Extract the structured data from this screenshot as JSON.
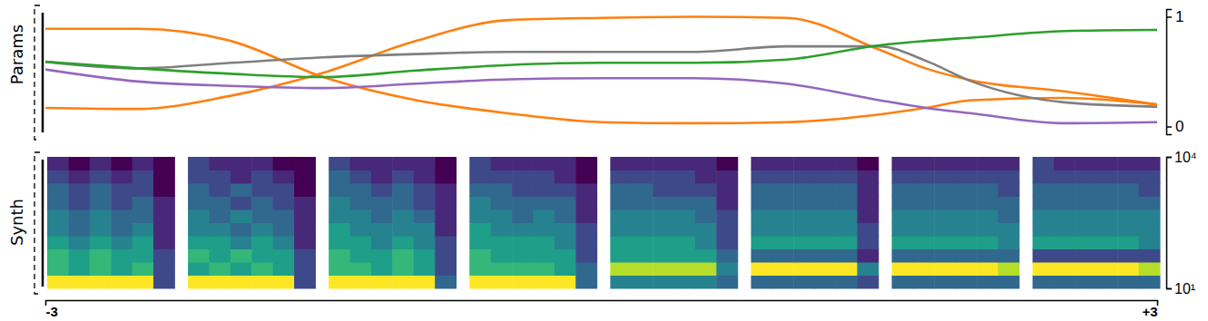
{
  "chart_data": [
    {
      "type": "line",
      "ylabel": "Params",
      "xlim": [
        -3,
        3
      ],
      "xticks": [
        {
          "value": -3,
          "label": "-3"
        },
        {
          "value": 3,
          "label": "+3"
        }
      ],
      "ylim": [
        -0.07,
        1.07
      ],
      "yticks": [
        0,
        1
      ],
      "x": [
        -3,
        -2.5,
        -2,
        -1.5,
        -1,
        -0.5,
        0,
        0.5,
        1,
        1.5,
        1.75,
        2,
        2.5,
        3
      ],
      "series": [
        {
          "color": "#ff7f0e",
          "values": [
            0.89,
            0.89,
            0.78,
            0.45,
            0.24,
            0.12,
            0.04,
            0.03,
            0.04,
            0.11,
            0.17,
            0.24,
            0.26,
            0.2
          ]
        },
        {
          "color": "#ff7f0e",
          "values": [
            0.17,
            0.16,
            0.28,
            0.49,
            0.78,
            0.97,
            0.99,
            1.0,
            0.99,
            0.7,
            0.53,
            0.42,
            0.32,
            0.2
          ]
        },
        {
          "color": "#7f7f7f",
          "values": [
            0.59,
            0.53,
            0.58,
            0.63,
            0.66,
            0.68,
            0.68,
            0.68,
            0.73,
            0.73,
            0.6,
            0.41,
            0.22,
            0.18
          ]
        },
        {
          "color": "#2ca02c",
          "values": [
            0.59,
            0.53,
            0.48,
            0.45,
            0.51,
            0.56,
            0.58,
            0.58,
            0.61,
            0.74,
            0.78,
            0.81,
            0.87,
            0.88
          ]
        },
        {
          "color": "#9467bd",
          "values": [
            0.52,
            0.41,
            0.37,
            0.35,
            0.39,
            0.43,
            0.44,
            0.44,
            0.39,
            0.24,
            0.17,
            0.12,
            0.03,
            0.04
          ]
        }
      ]
    },
    {
      "type": "heatmap",
      "ylabel": "Synth",
      "log": "y",
      "ylim": [
        10,
        10000
      ],
      "yticks": [
        {
          "value": 10,
          "label": "10¹"
        },
        {
          "value": 10000,
          "label": "10⁴"
        }
      ],
      "color_range": [
        0,
        9
      ],
      "spectrograms": [
        [
          [
            9,
            9,
            9,
            9,
            9,
            2
          ],
          [
            6,
            5,
            6,
            5,
            6,
            2
          ],
          [
            6,
            5,
            6,
            5,
            5,
            2
          ],
          [
            5,
            4,
            5,
            4,
            5,
            1
          ],
          [
            4,
            3,
            4,
            3,
            4,
            1
          ],
          [
            4,
            3,
            4,
            3,
            3,
            1
          ],
          [
            3,
            2,
            3,
            2,
            3,
            1
          ],
          [
            3,
            2,
            3,
            2,
            2,
            0
          ],
          [
            2,
            1,
            2,
            1,
            2,
            0
          ],
          [
            1,
            0,
            1,
            0,
            1,
            0
          ]
        ],
        [
          [
            9,
            9,
            9,
            9,
            9,
            2
          ],
          [
            5,
            6,
            5,
            6,
            5,
            2
          ],
          [
            6,
            5,
            6,
            5,
            5,
            2
          ],
          [
            5,
            5,
            4,
            5,
            4,
            1
          ],
          [
            4,
            4,
            3,
            4,
            3,
            1
          ],
          [
            4,
            3,
            4,
            3,
            3,
            1
          ],
          [
            3,
            3,
            2,
            3,
            2,
            1
          ],
          [
            3,
            2,
            3,
            2,
            2,
            0
          ],
          [
            2,
            2,
            1,
            2,
            1,
            0
          ],
          [
            2,
            1,
            1,
            1,
            0,
            0
          ]
        ],
        [
          [
            9,
            9,
            9,
            9,
            9,
            3
          ],
          [
            6,
            6,
            5,
            6,
            5,
            2
          ],
          [
            6,
            5,
            5,
            6,
            5,
            2
          ],
          [
            5,
            5,
            4,
            5,
            4,
            2
          ],
          [
            5,
            4,
            4,
            4,
            4,
            1
          ],
          [
            4,
            4,
            3,
            4,
            3,
            1
          ],
          [
            4,
            3,
            3,
            3,
            2,
            1
          ],
          [
            3,
            3,
            2,
            3,
            2,
            1
          ],
          [
            3,
            2,
            1,
            2,
            1,
            0
          ],
          [
            2,
            1,
            1,
            1,
            1,
            0
          ]
        ],
        [
          [
            9,
            9,
            9,
            9,
            9,
            3
          ],
          [
            6,
            6,
            6,
            6,
            5,
            3
          ],
          [
            6,
            5,
            5,
            5,
            5,
            2
          ],
          [
            5,
            5,
            5,
            5,
            4,
            2
          ],
          [
            5,
            4,
            4,
            4,
            4,
            2
          ],
          [
            4,
            4,
            3,
            4,
            3,
            1
          ],
          [
            4,
            3,
            3,
            3,
            3,
            1
          ],
          [
            3,
            3,
            2,
            2,
            2,
            1
          ],
          [
            2,
            2,
            2,
            2,
            1,
            0
          ],
          [
            2,
            1,
            1,
            1,
            1,
            0
          ]
        ],
        [
          [
            4,
            4,
            4,
            4,
            4,
            3
          ],
          [
            8,
            8,
            8,
            8,
            8,
            4
          ],
          [
            5,
            5,
            5,
            5,
            5,
            3
          ],
          [
            5,
            5,
            5,
            5,
            4,
            2
          ],
          [
            4,
            4,
            4,
            4,
            4,
            2
          ],
          [
            4,
            4,
            4,
            4,
            3,
            2
          ],
          [
            3,
            3,
            3,
            3,
            3,
            1
          ],
          [
            3,
            3,
            2,
            2,
            2,
            1
          ],
          [
            2,
            2,
            2,
            2,
            1,
            1
          ],
          [
            1,
            1,
            1,
            1,
            1,
            0
          ]
        ],
        [
          [
            3,
            3,
            3,
            3,
            3,
            2
          ],
          [
            9,
            9,
            9,
            9,
            9,
            4
          ],
          [
            3,
            3,
            3,
            3,
            3,
            1
          ],
          [
            5,
            5,
            5,
            5,
            5,
            2
          ],
          [
            4,
            4,
            4,
            4,
            4,
            2
          ],
          [
            4,
            4,
            4,
            4,
            4,
            1
          ],
          [
            3,
            3,
            3,
            3,
            3,
            1
          ],
          [
            3,
            3,
            3,
            3,
            3,
            1
          ],
          [
            2,
            2,
            2,
            2,
            2,
            1
          ],
          [
            1,
            1,
            1,
            1,
            1,
            0
          ]
        ],
        [
          [
            3,
            3,
            3,
            3,
            3,
            3
          ],
          [
            9,
            9,
            9,
            9,
            9,
            8
          ],
          [
            3,
            3,
            3,
            3,
            3,
            3
          ],
          [
            5,
            5,
            5,
            5,
            5,
            4
          ],
          [
            4,
            4,
            4,
            4,
            4,
            4
          ],
          [
            4,
            4,
            4,
            4,
            4,
            3
          ],
          [
            3,
            3,
            3,
            3,
            3,
            3
          ],
          [
            3,
            3,
            3,
            3,
            3,
            2
          ],
          [
            2,
            2,
            2,
            2,
            2,
            2
          ],
          [
            1,
            1,
            1,
            1,
            1,
            1
          ]
        ],
        [
          [
            3,
            3,
            3,
            3,
            3,
            3
          ],
          [
            9,
            9,
            9,
            9,
            9,
            8
          ],
          [
            2,
            2,
            2,
            2,
            2,
            2
          ],
          [
            5,
            5,
            5,
            5,
            5,
            4
          ],
          [
            4,
            4,
            4,
            4,
            4,
            4
          ],
          [
            4,
            4,
            4,
            4,
            4,
            4
          ],
          [
            3,
            3,
            3,
            3,
            3,
            3
          ],
          [
            3,
            3,
            3,
            3,
            3,
            2
          ],
          [
            2,
            2,
            2,
            2,
            2,
            2
          ],
          [
            2,
            1,
            1,
            1,
            1,
            1
          ]
        ]
      ]
    }
  ]
}
